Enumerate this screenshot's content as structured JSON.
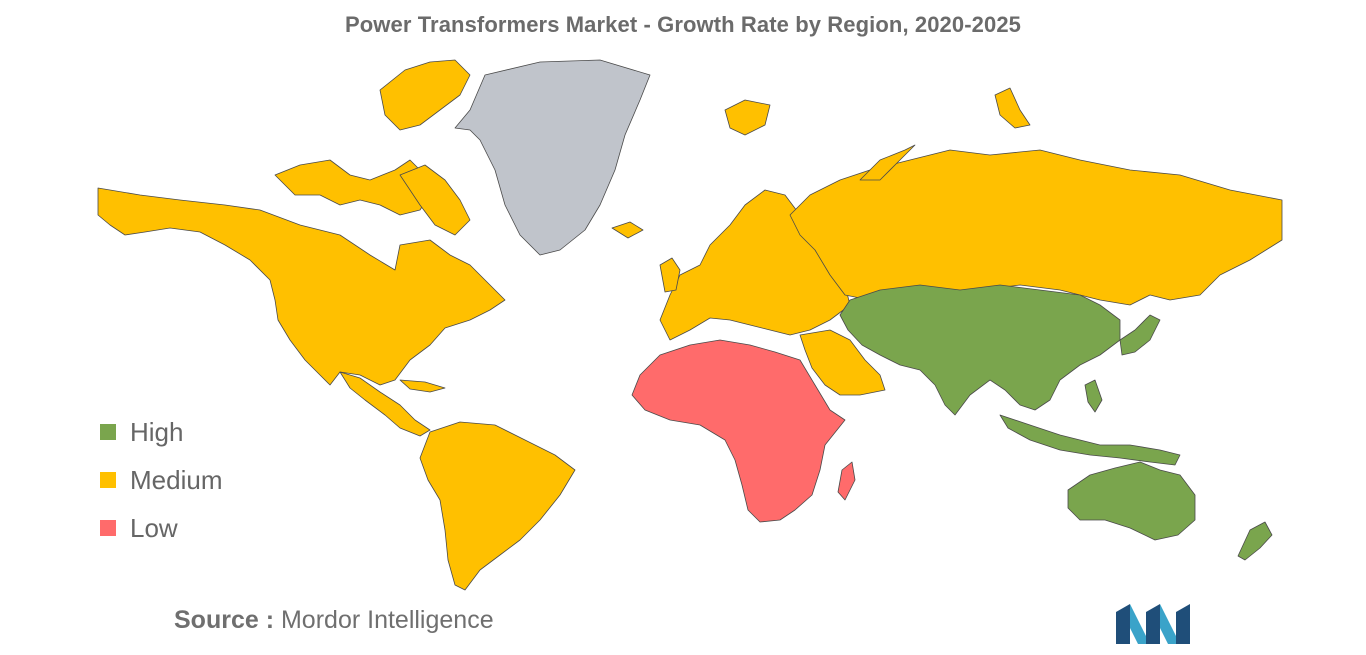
{
  "title": "Power Transformers Market - Growth Rate by Region, 2020-2025",
  "legend": [
    {
      "label": "High",
      "color": "#7aa54d"
    },
    {
      "label": "Medium",
      "color": "#ffc000"
    },
    {
      "label": "Low",
      "color": "#ff6b6b"
    }
  ],
  "colors": {
    "high": "#7aa54d",
    "medium": "#ffc000",
    "low": "#ff6b6b",
    "no_data": "#c0c4cb",
    "border": "#4a4a4a"
  },
  "regions": {
    "north_america": "Medium",
    "south_america": "Medium",
    "europe": "Medium",
    "russia": "Medium",
    "middle_east": "Medium",
    "africa": "Low",
    "asia_pacific": "High",
    "australia": "High",
    "greenland": "no data"
  },
  "source": {
    "prefix": "Source :",
    "text": "Mordor Intelligence"
  },
  "logo_icon": "mordor-intelligence-logo-icon"
}
